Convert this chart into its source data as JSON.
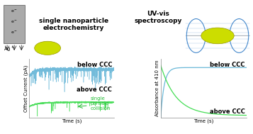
{
  "background_color": "#ffffff",
  "left_title": "single nanoparticle\nelectrochemistry",
  "right_title": "UV-vis\nspectroscopy",
  "left_ylabel": "Offset Current (pA)",
  "left_xlabel": "Time (s)",
  "right_ylabel": "Absorbance at 410 nm",
  "right_xlabel": "Time (s)",
  "blue_color": "#6ab8d8",
  "green_color": "#44dd55",
  "dark_green": "#22bb33",
  "label_below_ccc": "below CCC",
  "label_above_ccc": "above CCC",
  "annotation_text": "single\nparticle\ncollision",
  "title_fontsize": 6.5,
  "axis_fontsize": 5.0,
  "label_fontsize": 6.0,
  "annotation_fontsize": 5.0,
  "electrode_color": "#aaaaaa",
  "nanoparticle_color": "#ccdd00",
  "wave_color": "#4488cc"
}
